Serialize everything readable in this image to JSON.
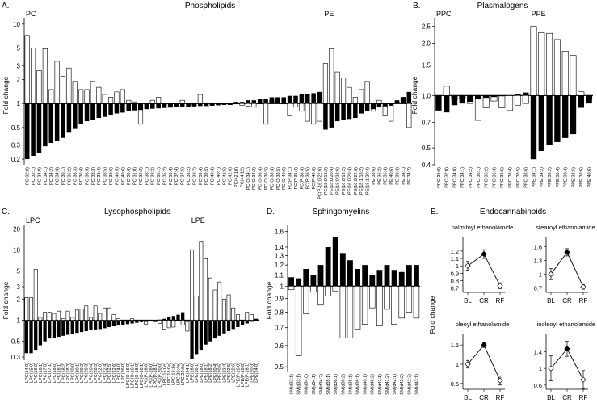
{
  "panels": {
    "A": {
      "letter": "A.",
      "title": "Phospholipids"
    },
    "B": {
      "letter": "B.",
      "title": "Plasmalogens"
    },
    "C": {
      "letter": "C.",
      "title": "Lysophospholipids"
    },
    "D": {
      "letter": "D.",
      "title": "Sphingomyelins"
    },
    "E": {
      "letter": "E.",
      "title": "Endocannabinoids"
    }
  },
  "y_label": "Fold change",
  "chart_data": [
    {
      "id": "A",
      "type": "bar",
      "scale": "log",
      "yticks": [
        "0.2",
        "0.3",
        "0.5",
        "1",
        "2",
        "3",
        "5",
        "10"
      ],
      "ylim": [
        0.17,
        12
      ],
      "groups": [
        {
          "label": "PC",
          "start": 0
        },
        {
          "label": "PE",
          "start": 50
        }
      ],
      "categories": [
        "PC(32:0)",
        "PC(32:1)",
        "PC(34:0)",
        "PC(34:1)",
        "PC(34:2)",
        "PC(34:3)",
        "PC(36:1)",
        "PC(36:2)",
        "PC(36:3)",
        "PC(36:4)",
        "PC(36:5)",
        "PC(38:3)",
        "PC(38:4)",
        "PC(38:5)",
        "PC(38:6)",
        "PC(40:5)",
        "PC(40:6)",
        "PC(30:0)",
        "PC(31:0)",
        "PC(32:2)",
        "PC(33:1)",
        "PC(33:2)",
        "PC(35:1)",
        "PC(35:2)",
        "PC(35:4)",
        "PC(37:4)",
        "PC(37:5)",
        "PC(38:2)",
        "PC(38:7)",
        "PC(39:4)",
        "PC(39:5)",
        "PC(40:4)",
        "PC(40:7)",
        "PC(42:5)",
        "PC(42:6)",
        "PC(42:10)",
        "PC(44:12)",
        "PC(O-34:1)",
        "PC(O-34:2)",
        "PC(O-36:4)",
        "PC(O-36:5)",
        "PC(O-38:4)",
        "PC(O-38:5)",
        "PC(O-40:6)",
        "PC(P-34:1)",
        "PC(P-36:4)",
        "PC(P-38:4)",
        "PC(P-38:5)",
        "PC(P-40:6)",
        "PC(P-16:0/22:6)",
        "PE(18:0/18:2)",
        "PE(18:0/20:4)",
        "PE(18:0/22:6)",
        "PE(16:0/18:2)",
        "PE(16:0/20:4)",
        "PE(16:0/22:6)",
        "PE(18:1/18:2)",
        "PE(18:1/20:4)",
        "PE(38:6)",
        "PE(36:2)",
        "PE(36:4)",
        "PE(40:6)",
        "PE(38:4)",
        "PE(34:1)",
        "PE(34:2)"
      ],
      "series": [
        {
          "values": [
            7.2,
            5.0,
            2.6,
            4.9,
            1.5,
            3.4,
            2.2,
            2.8,
            1.9,
            1.5,
            1.5,
            1.9,
            1.6,
            1.3,
            1.2,
            1.4,
            1.5,
            1.1,
            1.05,
            0.55,
            0.98,
            1.1,
            1.2,
            0.97,
            0.9,
            1.0,
            1.1,
            1.0,
            0.95,
            1.3,
            0.9,
            0.95,
            1.0,
            1.0,
            0.97,
            1.0,
            0.95,
            0.93,
            0.9,
            1.0,
            0.55,
            1.1,
            1.05,
            1.0,
            0.7,
            0.9,
            0.8,
            0.6,
            0.55,
            0.6,
            3.2,
            4.9,
            2.5,
            2.1,
            1.6,
            1.2,
            1.5,
            1.9,
            0.8,
            1.1,
            0.7,
            0.6,
            1.05,
            1.2,
            0.5
          ]
        },
        {
          "values": [
            0.2,
            0.22,
            0.24,
            0.29,
            0.32,
            0.34,
            0.37,
            0.43,
            0.48,
            0.55,
            0.6,
            0.62,
            0.66,
            0.68,
            0.72,
            0.75,
            0.77,
            0.8,
            0.82,
            0.83,
            0.85,
            0.86,
            0.87,
            0.88,
            0.89,
            0.9,
            0.9,
            0.91,
            0.92,
            0.93,
            0.93,
            0.94,
            0.95,
            0.96,
            0.96,
            1.05,
            1.05,
            1.1,
            1.1,
            1.15,
            1.15,
            1.2,
            1.2,
            1.2,
            1.25,
            1.25,
            1.3,
            1.3,
            1.35,
            1.4,
            0.47,
            0.5,
            0.6,
            0.62,
            0.64,
            0.66,
            0.75,
            0.8,
            0.85,
            0.9,
            0.92,
            0.94,
            1.1,
            1.2,
            1.4
          ]
        }
      ]
    },
    {
      "id": "B",
      "type": "bar",
      "scale": "log",
      "yticks": [
        "0.4",
        "0.5",
        "0.7",
        "1.0",
        "1.5",
        "2.0",
        "2.5"
      ],
      "ylim": [
        0.4,
        2.8
      ],
      "groups": [
        {
          "label": "PPC",
          "start": 0
        },
        {
          "label": "PPE",
          "start": 12
        }
      ],
      "categories": [
        "PPC(30:0)",
        "PPC(32:0)",
        "PPC(34:0)",
        "PPC(34:1)",
        "PPC(34:2)",
        "PPC(36:1)",
        "PPC(36:2)",
        "PPC(36:4)",
        "PPC(36:5)",
        "PPC(38:4)",
        "PPC(38:5)",
        "PPC(38:6)",
        "PPE(34:1)",
        "PPE(34:2)",
        "PPE(36:2)",
        "PPE(36:4)",
        "PPE(38:4)",
        "PPE(38:5)",
        "PPE(38:6)",
        "PPE(40:6)"
      ],
      "series": [
        {
          "values": [
            1.0,
            1.13,
            0.95,
            0.96,
            0.9,
            0.72,
            0.85,
            0.93,
            0.85,
            0.82,
            0.88,
            0.9,
            2.5,
            2.3,
            2.28,
            2.1,
            1.8,
            1.7,
            1.05,
            0.95
          ]
        },
        {
          "values": [
            0.82,
            0.8,
            0.88,
            0.9,
            0.92,
            0.95,
            0.97,
            0.98,
            0.99,
            1.0,
            1.02,
            1.04,
            0.43,
            0.48,
            0.52,
            0.54,
            0.57,
            0.6,
            0.85,
            0.9
          ]
        }
      ]
    },
    {
      "id": "C",
      "type": "bar",
      "scale": "log",
      "yticks": [
        "0.3",
        "0.5",
        "1",
        "2",
        "3",
        "5",
        "10",
        "20"
      ],
      "ylim": [
        0.27,
        23
      ],
      "groups": [
        {
          "label": "LPC",
          "start": 0
        },
        {
          "label": "LPE",
          "start": 36
        }
      ],
      "categories": [
        "LPC(14:0)",
        "LPC(15:0)",
        "LPC(16:0)",
        "LPC(16:1)",
        "LPC(17:0)",
        "LPC(17:1)",
        "LPC(18:0)",
        "LPC(18:1)",
        "LPC(18:2)",
        "LPC(18:3)",
        "LPC(20:0)",
        "LPC(20:1)",
        "LPC(20:2)",
        "LPC(20:3)",
        "LPC(20:4)",
        "LPC(20:5)",
        "LPC(22:0)",
        "LPC(22:4)",
        "LPC(22:5)",
        "LPC(22:6)",
        "LPC(24:0)",
        "LPC(26:0)",
        "LPC(O-16:0)",
        "LPC(O-16:1)",
        "LPC(O-18:0)",
        "LPC(O-18:1)",
        "LPC(P-16:0)",
        "LPC(P-18:0)",
        "LPC(P-18:1)",
        "LPC(P-20:0)",
        "LPC(16:0e)",
        "LPC(18:0e)",
        "LPC(18:1e)",
        "LPC(20:4e)",
        "LPC(22:6e)",
        "LPC(24:1)",
        "LPE(16:0)",
        "LPE(16:1)",
        "LPE(18:0)",
        "LPE(18:1)",
        "LPE(18:2)",
        "LPE(20:4)",
        "LPE(20:5)",
        "LPE(22:4)",
        "LPE(22:5)",
        "LPE(22:6)",
        "LPE(P-16:0)",
        "LPE(P-18:0)",
        "LPE(P-18:1)",
        "LPE(20:3)",
        "LPE(24:0)"
      ],
      "series": [
        {
          "values": [
            2.1,
            2.1,
            5.3,
            1.1,
            1.3,
            1.3,
            1.25,
            1.35,
            1.05,
            1.35,
            1.1,
            1.4,
            1.45,
            1.6,
            1.1,
            1.6,
            1.25,
            1.5,
            1.5,
            1.2,
            1.05,
            1.0,
            0.95,
            1.05,
            0.97,
            1.0,
            0.88,
            1.0,
            0.95,
            0.9,
            0.75,
            0.78,
            0.8,
            1.0,
            0.85,
            0.7,
            10.0,
            2.2,
            13.0,
            7.5,
            4.0,
            2.7,
            3.5,
            2.0,
            2.3,
            1.5,
            1.2,
            1.0,
            1.3,
            1.2,
            1.0
          ]
        },
        {
          "values": [
            0.34,
            0.34,
            0.38,
            0.44,
            0.5,
            0.55,
            0.56,
            0.58,
            0.6,
            0.62,
            0.64,
            0.66,
            0.68,
            0.7,
            0.72,
            0.74,
            0.75,
            0.77,
            0.8,
            0.82,
            0.84,
            0.86,
            0.88,
            0.9,
            0.92,
            0.94,
            0.95,
            0.97,
            0.98,
            1.02,
            1.05,
            1.1,
            1.15,
            1.2,
            1.3,
            0.95,
            0.28,
            0.33,
            0.38,
            0.45,
            0.5,
            0.55,
            0.6,
            0.65,
            0.7,
            0.75,
            0.8,
            0.85,
            0.9,
            0.95,
            1.05
          ]
        }
      ]
    },
    {
      "id": "D",
      "type": "bar",
      "scale": "log",
      "yticks": [
        "0.5",
        "0.6",
        "0.7",
        "0.8",
        "0.9",
        "1",
        "1.1",
        "1.2",
        "1.3",
        "1.4",
        "1.6"
      ],
      "ylim": [
        0.48,
        1.7
      ],
      "categories": [
        "SM(d32:1)",
        "SM(d33:1)",
        "SM(d34:0)",
        "SM(d34:1)",
        "SM(d34:2)",
        "SM(d35:1)",
        "SM(d36:1)",
        "SM(d36:2)",
        "SM(d38:1)",
        "SM(d39:1)",
        "SM(d40:1)",
        "SM(d40:2)",
        "SM(d41:1)",
        "SM(d41:2)",
        "SM(d42:1)",
        "SM(d42:2)",
        "SM(d42:3)",
        "SM(d43:1)"
      ],
      "series": [
        {
          "values": [
            0.97,
            0.55,
            0.79,
            0.95,
            0.85,
            0.92,
            0.96,
            0.64,
            0.64,
            0.69,
            0.72,
            0.83,
            0.71,
            0.82,
            0.72,
            0.76,
            0.8,
            0.76
          ]
        },
        {
          "values": [
            1.08,
            1.07,
            1.16,
            1.1,
            1.2,
            1.4,
            1.53,
            1.33,
            1.25,
            1.16,
            1.2,
            1.1,
            1.15,
            1.2,
            1.15,
            1.13,
            1.2,
            1.2
          ]
        }
      ]
    },
    {
      "id": "E",
      "type": "line",
      "xcats": [
        "BL",
        "CR",
        "RF"
      ],
      "subplots": [
        {
          "title": "palmitoyl ethanolamide",
          "yticks": [
            "0.7",
            "0.8",
            "0.9",
            "1",
            "1.1",
            "1.2"
          ],
          "ylim": [
            0.64,
            1.32
          ],
          "values": [
            1.0,
            1.16,
            0.73
          ],
          "err": [
            0.06,
            0.06,
            0.04
          ]
        },
        {
          "title": "stearoyl ethanolamide",
          "yticks": [
            "0.7",
            "1",
            "1.3",
            "1.6"
          ],
          "ylim": [
            0.6,
            1.7
          ],
          "values": [
            1.0,
            1.48,
            0.72
          ],
          "err": [
            0.12,
            0.08,
            0.05
          ]
        },
        {
          "title": "oleoyl ethanolamide",
          "yticks": [
            "0.5",
            "1",
            "1.5"
          ],
          "ylim": [
            0.35,
            1.65
          ],
          "values": [
            1.0,
            1.5,
            0.58
          ],
          "err": [
            0.1,
            0.06,
            0.12
          ]
        },
        {
          "title": "linoleoyl ethanolamide",
          "yticks": [
            "0.6",
            "1",
            "1.4"
          ],
          "ylim": [
            0.5,
            1.7
          ],
          "values": [
            1.0,
            1.47,
            0.73
          ],
          "err": [
            0.3,
            0.18,
            0.22
          ]
        }
      ]
    }
  ]
}
